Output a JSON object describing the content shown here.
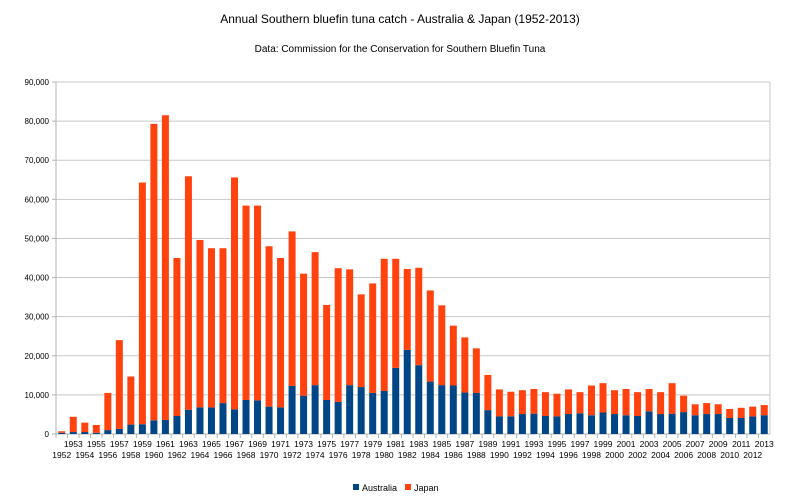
{
  "chart_data": {
    "type": "bar",
    "stacked": true,
    "title": "Annual Southern bluefin tuna catch - Australia & Japan (1952-2013)",
    "subtitle": "Data: Commission for the Conservation for Southern Bluefin Tuna",
    "xlabel": "",
    "ylabel": "",
    "ylim": [
      0,
      90000
    ],
    "yticks": [
      "0",
      "10,000",
      "20,000",
      "30,000",
      "40,000",
      "50,000",
      "60,000",
      "70,000",
      "80,000",
      "90,000"
    ],
    "grid": true,
    "legend_position": "bottom",
    "categories": [
      "1952",
      "1953",
      "1954",
      "1955",
      "1956",
      "1957",
      "1958",
      "1959",
      "1960",
      "1961",
      "1962",
      "1963",
      "1964",
      "1965",
      "1966",
      "1967",
      "1968",
      "1969",
      "1970",
      "1971",
      "1972",
      "1973",
      "1974",
      "1975",
      "1976",
      "1977",
      "1978",
      "1979",
      "1980",
      "1981",
      "1982",
      "1983",
      "1984",
      "1985",
      "1986",
      "1987",
      "1988",
      "1989",
      "1990",
      "1991",
      "1992",
      "1993",
      "1994",
      "1995",
      "1996",
      "1997",
      "1998",
      "1999",
      "2000",
      "2001",
      "2002",
      "2003",
      "2004",
      "2005",
      "2006",
      "2007",
      "2008",
      "2009",
      "2010",
      "2011",
      "2012",
      "2013"
    ],
    "series": [
      {
        "name": "Australia",
        "color": "#004586",
        "values": [
          300,
          500,
          500,
          300,
          1000,
          1300,
          2400,
          2500,
          3500,
          3600,
          4600,
          6200,
          6800,
          6800,
          7900,
          6300,
          8700,
          8600,
          7000,
          6800,
          12300,
          9800,
          12500,
          8700,
          8200,
          12500,
          12000,
          10500,
          11000,
          16900,
          21500,
          17600,
          13400,
          12500,
          12400,
          10600,
          10500,
          6100,
          4500,
          4500,
          5100,
          5200,
          4600,
          4500,
          5100,
          5300,
          4800,
          5500,
          5100,
          4800,
          4600,
          5800,
          5100,
          5200,
          5600,
          4800,
          5100,
          5100,
          4100,
          4100,
          4500,
          4800
        ]
      },
      {
        "name": "Japan",
        "color": "#ff420e",
        "values": [
          400,
          3900,
          2400,
          2000,
          9500,
          22700,
          12300,
          61800,
          75800,
          77900,
          40400,
          59700,
          42800,
          40700,
          39600,
          59300,
          49700,
          49800,
          41000,
          38200,
          39500,
          31200,
          34000,
          24300,
          34200,
          29600,
          23700,
          28000,
          33800,
          27900,
          20700,
          24900,
          23300,
          20400,
          15300,
          14100,
          11400,
          9000,
          6900,
          6300,
          6100,
          6300,
          6100,
          5800,
          6300,
          5400,
          7600,
          7500,
          6100,
          6700,
          6100,
          5700,
          5600,
          7800,
          4200,
          2800,
          2800,
          2500,
          2300,
          2600,
          2500,
          2600
        ]
      }
    ]
  }
}
